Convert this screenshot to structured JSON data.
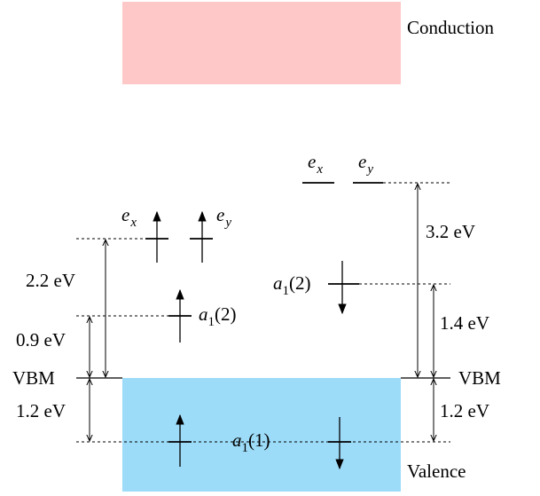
{
  "bands": {
    "conduction": {
      "label": "Conduction",
      "color": "#ffc8c8"
    },
    "valence": {
      "label": "Valence",
      "color": "#9ddcf9"
    }
  },
  "vbm_left": "VBM",
  "vbm_right": "VBM",
  "left": {
    "gap_e": "2.2 eV",
    "gap_a1_2": "0.9 eV",
    "below_vbm": "1.2 eV",
    "e_x": {
      "sym": "e",
      "sub": "x"
    },
    "e_y": {
      "sym": "e",
      "sub": "y"
    },
    "a1_2": {
      "sym": "a",
      "sub": "1",
      "tail": "(2)"
    }
  },
  "right": {
    "gap_e": "3.2 eV",
    "gap_a1_2": "1.4 eV",
    "below_vbm": "1.2 eV",
    "e_x": {
      "sym": "e",
      "sub": "x"
    },
    "e_y": {
      "sym": "e",
      "sub": "y"
    },
    "a1_2": {
      "sym": "a",
      "sub": "1",
      "tail": "(2)"
    }
  },
  "a1_1": {
    "sym": "a",
    "sub": "1",
    "tail": "(1)"
  }
}
